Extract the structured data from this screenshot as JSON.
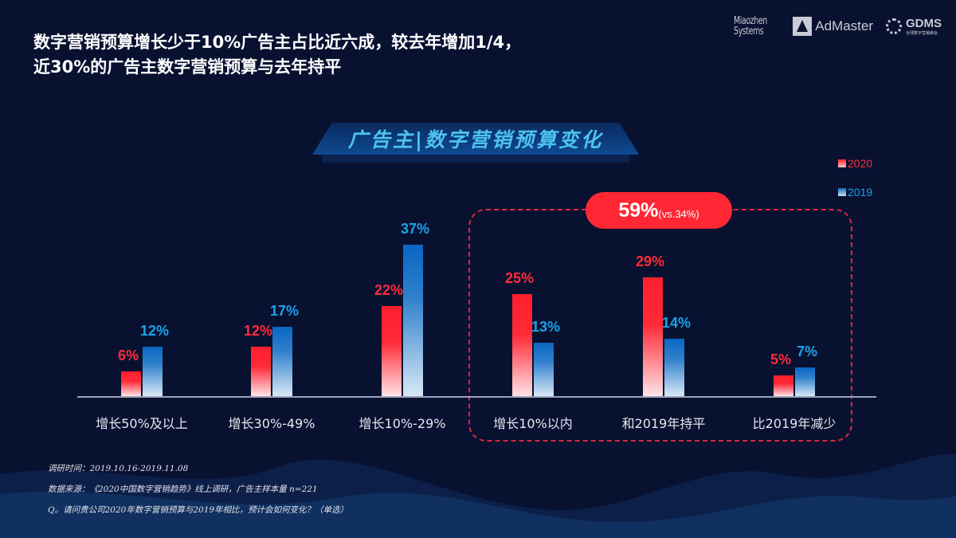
{
  "headline": {
    "line1": "数字营销预算增长少于10%广告主占比近六成，较去年增加1/4，",
    "line2": "近30%的广告主数字营销预算与去年持平"
  },
  "logos": {
    "miaozhen_line1": "Miaozhen",
    "miaozhen_line2": "Systems",
    "admaster": "AdMaster",
    "gdms": "GDMS",
    "gdms_sub": "全球数字营销峰会"
  },
  "banner": {
    "title": "广告主|数字营销预算变化"
  },
  "legend": [
    {
      "label": "2020",
      "color": "#ff2b3b"
    },
    {
      "label": "2019",
      "color": "#1ba3e8"
    }
  ],
  "highlight": {
    "big": "59%",
    "small": "(vs.34%)"
  },
  "chart_data": {
    "type": "bar",
    "title": "广告主|数字营销预算变化",
    "xlabel": "",
    "ylabel": "",
    "ylim": [
      0,
      40
    ],
    "grid": false,
    "legend_position": "top-right",
    "categories": [
      "增长50%及以上",
      "增长30%-49%",
      "增长10%-29%",
      "增长10%以内",
      "和2019年持平",
      "比2019年减少"
    ],
    "series": [
      {
        "name": "2020",
        "color": "#ff2b3b",
        "values": [
          6,
          12,
          22,
          25,
          29,
          5
        ],
        "labels": [
          "6%",
          "12%",
          "22%",
          "25%",
          "29%",
          "5%"
        ]
      },
      {
        "name": "2019",
        "color": "#1ba3e8",
        "values": [
          12,
          17,
          37,
          13,
          14,
          7
        ],
        "labels": [
          "12%",
          "17%",
          "37%",
          "13%",
          "14%",
          "7%"
        ]
      }
    ],
    "annotations": [
      {
        "text": "59%(vs.34%)",
        "applies_to": [
          "增长10%以内",
          "和2019年持平",
          "比2019年减少"
        ]
      }
    ]
  },
  "notes": {
    "survey_time": "调研时间：2019.10.16-2019.11.08",
    "source": "数据来源：《2020中国数字营销趋势》线上调研，广告主样本量 n=221",
    "question": "Q。请问贵公司2020年数字营销预算与2019年相比，预计会如何变化？（单选）"
  }
}
